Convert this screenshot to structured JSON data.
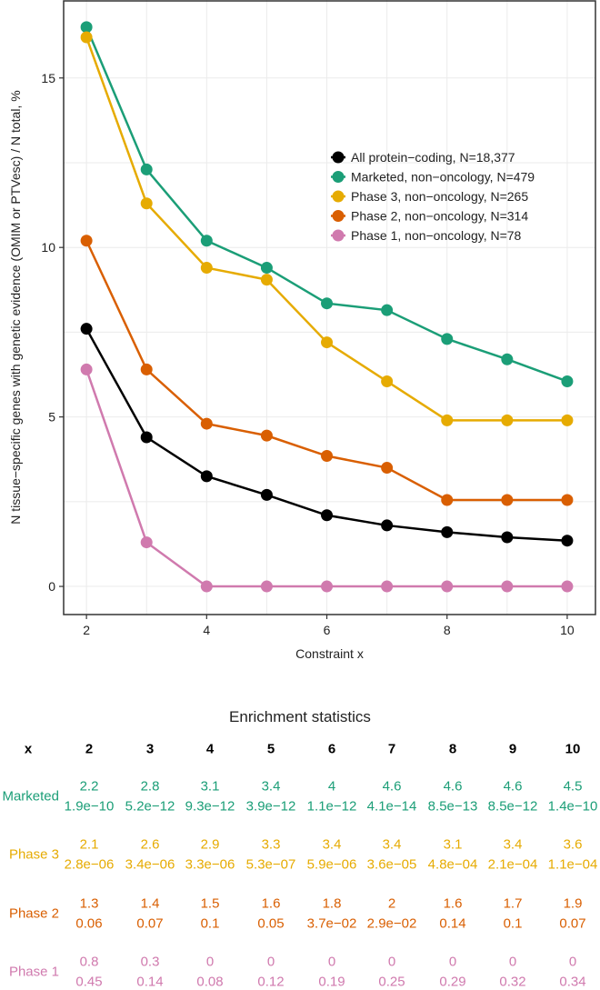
{
  "chart_data": {
    "type": "line",
    "title": "",
    "xlabel": "Constraint x",
    "ylabel": "N tissue−specific genes with genetic evidence (OMIM or PTVesc) / N total, %",
    "x": [
      2,
      3,
      4,
      5,
      6,
      7,
      8,
      9,
      10
    ],
    "xticks": [
      2,
      4,
      6,
      8,
      10
    ],
    "yticks": [
      0,
      5,
      10,
      15
    ],
    "xlim": [
      1.62,
      10.47
    ],
    "ylim": [
      -0.83,
      17.3
    ],
    "grid": true,
    "legend_position": "top-right",
    "series": [
      {
        "name": "All protein−coding, N=18,377",
        "color": "#000000",
        "values": [
          7.6,
          4.4,
          3.25,
          2.7,
          2.1,
          1.8,
          1.6,
          1.45,
          1.35
        ]
      },
      {
        "name": "Marketed, non−oncology, N=479",
        "color": "#1b9e77",
        "values": [
          16.5,
          12.3,
          10.2,
          9.4,
          8.35,
          8.15,
          7.3,
          6.7,
          6.05
        ]
      },
      {
        "name": "Phase 3, non−oncology, N=265",
        "color": "#e6ab02",
        "values": [
          16.2,
          11.3,
          9.4,
          9.05,
          7.2,
          6.05,
          4.9,
          4.9,
          4.9
        ]
      },
      {
        "name": "Phase 2, non−oncology, N=314",
        "color": "#d95f02",
        "values": [
          10.2,
          6.4,
          4.8,
          4.45,
          3.85,
          3.5,
          2.55,
          2.55,
          2.55
        ]
      },
      {
        "name": "Phase 1, non−oncology, N=78",
        "color": "#d07aae",
        "values": [
          6.4,
          1.3,
          0,
          0,
          0,
          0,
          0,
          0,
          0
        ]
      }
    ]
  },
  "table": {
    "title": "Enrichment statistics",
    "header": [
      "x",
      "2",
      "3",
      "4",
      "5",
      "6",
      "7",
      "8",
      "9",
      "10"
    ],
    "rows": [
      {
        "label": "Marketed",
        "color": "#1b9e77",
        "enrichment": [
          "2.2",
          "2.8",
          "3.1",
          "3.4",
          "4",
          "4.6",
          "4.6",
          "4.6",
          "4.5"
        ],
        "pvalues": [
          "1.9e−10",
          "5.2e−12",
          "9.3e−12",
          "3.9e−12",
          "1.1e−12",
          "4.1e−14",
          "8.5e−13",
          "8.5e−12",
          "1.4e−10"
        ]
      },
      {
        "label": "Phase 3",
        "color": "#e6ab02",
        "enrichment": [
          "2.1",
          "2.6",
          "2.9",
          "3.3",
          "3.4",
          "3.4",
          "3.1",
          "3.4",
          "3.6"
        ],
        "pvalues": [
          "2.8e−06",
          "3.4e−06",
          "3.3e−06",
          "5.3e−07",
          "5.9e−06",
          "3.6e−05",
          "4.8e−04",
          "2.1e−04",
          "1.1e−04"
        ]
      },
      {
        "label": "Phase 2",
        "color": "#d95f02",
        "enrichment": [
          "1.3",
          "1.4",
          "1.5",
          "1.6",
          "1.8",
          "2",
          "1.6",
          "1.7",
          "1.9"
        ],
        "pvalues": [
          "0.06",
          "0.07",
          "0.1",
          "0.05",
          "3.7e−02",
          "2.9e−02",
          "0.14",
          "0.1",
          "0.07"
        ]
      },
      {
        "label": "Phase 1",
        "color": "#d07aae",
        "enrichment": [
          "0.8",
          "0.3",
          "0",
          "0",
          "0",
          "0",
          "0",
          "0",
          "0"
        ],
        "pvalues": [
          "0.45",
          "0.14",
          "0.08",
          "0.12",
          "0.19",
          "0.25",
          "0.29",
          "0.32",
          "0.34"
        ]
      }
    ]
  }
}
